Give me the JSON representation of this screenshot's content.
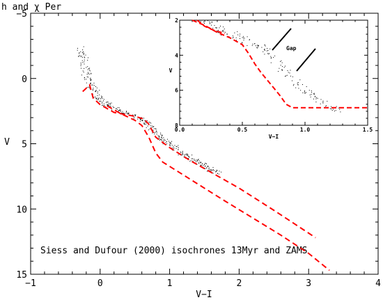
{
  "chart_data": [
    {
      "type": "scatter",
      "title": "h and χ Per",
      "xlabel": "V−I",
      "ylabel": "V",
      "xlim": [
        -1,
        4
      ],
      "ylim": [
        15,
        -5
      ],
      "y_inverted": true,
      "xticks": [
        "−1",
        "0",
        "1",
        "2",
        "3",
        "4"
      ],
      "yticks": [
        "−5",
        "0",
        "5",
        "10",
        "15"
      ],
      "annotation": "Siess and Dufour (2000) isochrones 13Myr and ZAMS",
      "series": [
        {
          "kind": "points",
          "sequence": [
            [
              -0.3,
              -2.4
            ],
            [
              -0.25,
              -1.6
            ],
            [
              -0.22,
              -0.8
            ],
            [
              -0.18,
              0.0
            ],
            [
              -0.12,
              0.6
            ],
            [
              -0.05,
              1.2
            ],
            [
              0.0,
              1.6
            ],
            [
              0.1,
              2.0
            ],
            [
              0.2,
              2.3
            ],
            [
              0.35,
              2.6
            ],
            [
              0.5,
              2.9
            ],
            [
              0.6,
              3.2
            ],
            [
              0.7,
              3.6
            ],
            [
              0.8,
              4.1
            ],
            [
              0.9,
              4.6
            ],
            [
              1.0,
              5.0
            ],
            [
              1.1,
              5.4
            ],
            [
              1.2,
              5.8
            ],
            [
              1.3,
              6.1
            ],
            [
              1.4,
              6.4
            ],
            [
              1.5,
              6.7
            ],
            [
              1.6,
              7.0
            ],
            [
              1.7,
              7.2
            ]
          ]
        },
        {
          "name": "13Myr",
          "kind": "dashed",
          "color": "#ff0000",
          "points": [
            [
              -0.25,
              1.0
            ],
            [
              -0.15,
              0.5
            ],
            [
              -0.1,
              1.5
            ],
            [
              0.0,
              2.0
            ],
            [
              0.2,
              2.6
            ],
            [
              0.5,
              2.9
            ],
            [
              0.63,
              3.1
            ],
            [
              0.7,
              3.5
            ],
            [
              0.8,
              4.5
            ],
            [
              1.0,
              5.3
            ],
            [
              1.3,
              6.3
            ],
            [
              1.6,
              7.2
            ],
            [
              2.0,
              8.4
            ],
            [
              2.5,
              10.1
            ],
            [
              3.1,
              12.2
            ]
          ]
        },
        {
          "name": "ZAMS",
          "kind": "dashed",
          "color": "#ff0000",
          "points": [
            [
              0.1,
              2.1
            ],
            [
              0.3,
              2.7
            ],
            [
              0.5,
              3.2
            ],
            [
              0.6,
              3.6
            ],
            [
              0.7,
              4.5
            ],
            [
              0.8,
              5.7
            ],
            [
              0.9,
              6.4
            ],
            [
              1.2,
              7.4
            ],
            [
              1.5,
              8.4
            ],
            [
              1.8,
              9.4
            ],
            [
              2.2,
              10.7
            ],
            [
              2.6,
              12.0
            ],
            [
              3.0,
              13.4
            ],
            [
              3.3,
              14.7
            ]
          ]
        }
      ]
    },
    {
      "type": "scatter",
      "inset": true,
      "xlabel": "V−I",
      "ylabel": "V",
      "xlim": [
        0,
        1.5
      ],
      "ylim": [
        8,
        2
      ],
      "y_inverted": true,
      "xticks": [
        "0.0",
        "0.5",
        "1.0",
        "1.5"
      ],
      "yticks": [
        "2",
        "4",
        "6",
        "8"
      ],
      "annotation": "Gap",
      "series": [
        {
          "kind": "points",
          "sequence": [
            [
              0.15,
              2.0
            ],
            [
              0.25,
              2.3
            ],
            [
              0.35,
              2.6
            ],
            [
              0.45,
              2.9
            ],
            [
              0.55,
              3.2
            ],
            [
              0.65,
              3.5
            ],
            [
              0.72,
              3.9
            ],
            [
              0.8,
              4.6
            ],
            [
              0.9,
              5.3
            ],
            [
              0.98,
              5.9
            ],
            [
              1.05,
              6.3
            ],
            [
              1.15,
              6.7
            ],
            [
              1.25,
              7.1
            ]
          ]
        },
        {
          "name": "13Myr",
          "kind": "dashed",
          "color": "#ff0000",
          "points": [
            [
              0.1,
              2.0
            ],
            [
              0.2,
              2.3
            ],
            [
              0.3,
              2.7
            ],
            [
              0.4,
              3.0
            ],
            [
              0.5,
              3.4
            ],
            [
              0.55,
              3.9
            ],
            [
              0.6,
              4.5
            ],
            [
              0.65,
              5.0
            ],
            [
              0.72,
              5.6
            ],
            [
              0.8,
              6.3
            ],
            [
              0.85,
              6.8
            ],
            [
              0.9,
              7.0
            ],
            [
              1.5,
              7.0
            ]
          ]
        },
        {
          "name": "ZAMS",
          "kind": "dashed",
          "color": "#ff0000",
          "points": [
            [
              0.14,
              2.0
            ],
            [
              0.2,
              2.35
            ],
            [
              0.28,
              2.6
            ],
            [
              0.36,
              2.75
            ]
          ]
        }
      ]
    }
  ]
}
